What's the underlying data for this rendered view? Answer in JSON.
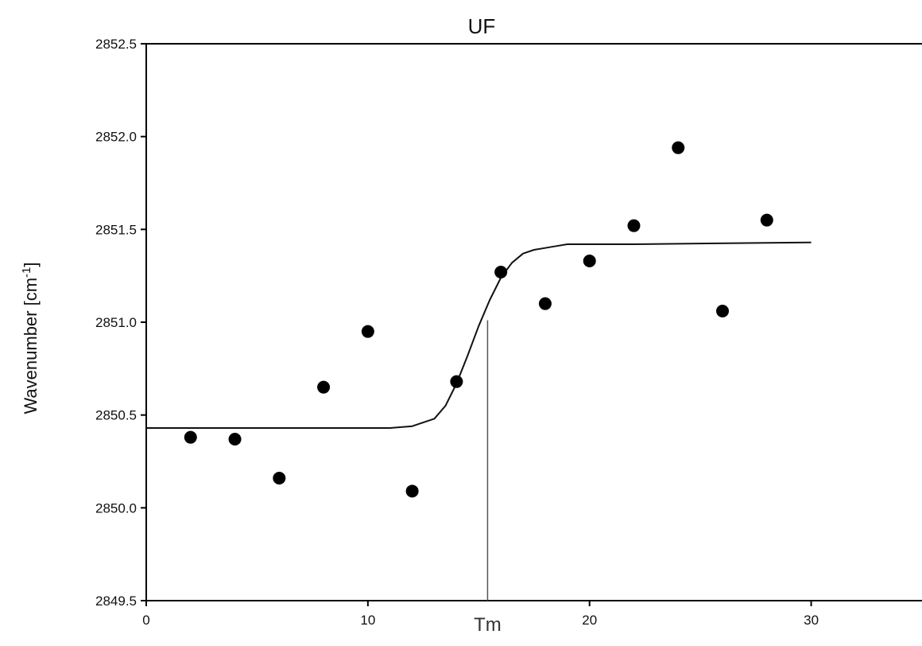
{
  "chart_data": {
    "type": "scatter",
    "title": "UF",
    "xlabel": "",
    "ylabel": "Wavenumber [cm",
    "ylabel_superscript": "-1",
    "ylabel_suffix": "]",
    "xlim": [
      0,
      35
    ],
    "ylim": [
      2849.5,
      2852.5
    ],
    "x_ticks": [
      0,
      10,
      20,
      30
    ],
    "x_tick_labels": [
      "0",
      "10",
      "20",
      "30"
    ],
    "y_ticks": [
      2849.5,
      2850.0,
      2850.5,
      2851.0,
      2851.5,
      2852.0,
      2852.5
    ],
    "y_tick_labels": [
      "2849.5",
      "2850.0",
      "2850.5",
      "2851.0",
      "2851.5",
      "2852.0",
      "2852.5"
    ],
    "grid": false,
    "series": [
      {
        "kind": "points",
        "x": [
          2,
          4,
          6,
          8,
          10,
          12,
          14,
          16,
          18,
          20,
          22,
          24,
          26,
          28
        ],
        "y": [
          2850.38,
          2850.37,
          2850.16,
          2850.65,
          2850.95,
          2850.09,
          2850.68,
          2851.27,
          2851.1,
          2851.33,
          2851.52,
          2851.94,
          2851.06,
          2851.55
        ]
      },
      {
        "kind": "fit-line",
        "x": [
          0,
          11,
          12,
          13,
          13.5,
          14,
          14.5,
          15,
          15.5,
          16,
          16.5,
          17,
          17.5,
          18,
          18.5,
          19,
          22,
          30
        ],
        "y": [
          2850.43,
          2850.43,
          2850.44,
          2850.48,
          2850.55,
          2850.67,
          2850.82,
          2850.98,
          2851.12,
          2851.24,
          2851.32,
          2851.37,
          2851.39,
          2851.4,
          2851.41,
          2851.42,
          2851.42,
          2851.43
        ]
      }
    ],
    "annotations": [
      {
        "label": "Tm",
        "x": 15.4,
        "y_top": 2851.01
      }
    ],
    "colors": {
      "points": "#000000",
      "line": "#111111",
      "tm_line": "#555555",
      "axis": "#000000"
    }
  }
}
